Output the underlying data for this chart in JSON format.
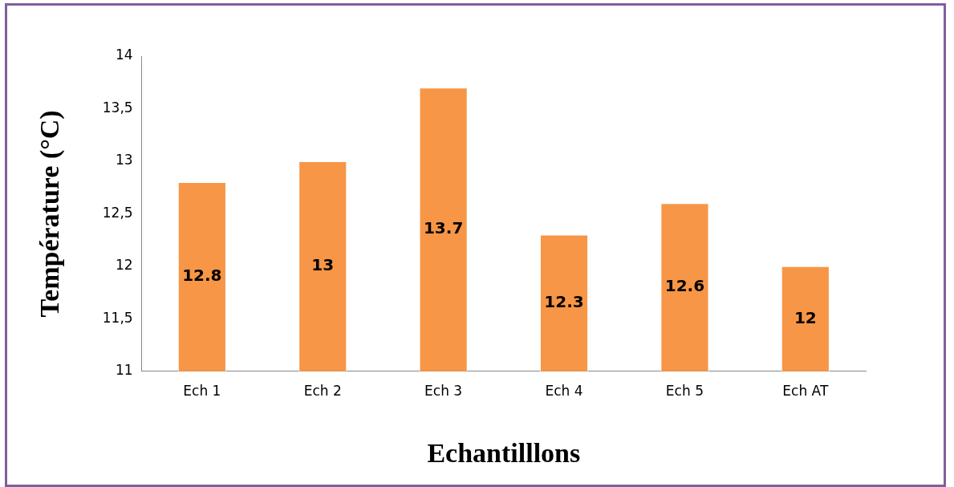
{
  "chart_data": {
    "type": "bar",
    "xlabel": "Echantilllons",
    "ylabel": "Température (°C)",
    "categories": [
      "Ech 1",
      "Ech 2",
      "Ech 3",
      "Ech 4",
      "Ech 5",
      "Ech AT"
    ],
    "values": [
      12.8,
      13,
      13.7,
      12.3,
      12.6,
      12
    ],
    "color": "#f79646",
    "ylim": [
      11,
      14
    ],
    "yticks": [
      11,
      {
        "value": 11.5,
        "label": "11,5"
      },
      12,
      {
        "value": 12.5,
        "label": "12,5"
      },
      13,
      {
        "value": 13.5,
        "label": "13,5"
      },
      14
    ],
    "grid": false,
    "legend": false,
    "data_labels": true
  }
}
